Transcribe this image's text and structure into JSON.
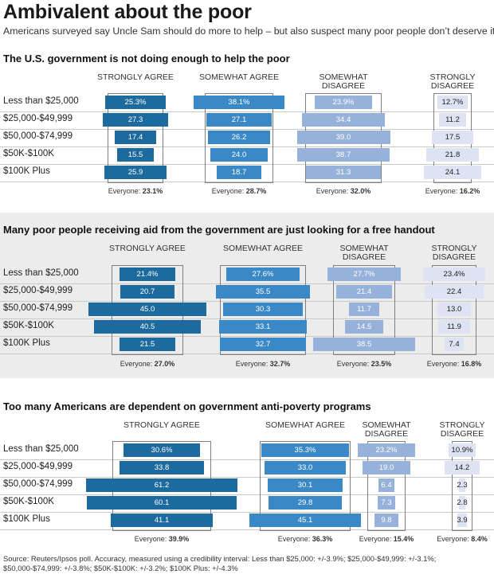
{
  "title": "Ambivalent about the poor",
  "subtitle": "Americans surveyed say Uncle Sam should do more to help – but also suspect many poor people don’t deserve it.",
  "source": "Source: Reuters/Ipsos poll. Accuracy, measured using a credibility interval: Less than $25,000: +/-3.9%; $25,000-$49,999: +/-3.1%; $50,000-$74,999: +/-3.8%; $50K-$100K: +/-3.2%; $100K Plus: +/-4.3%",
  "colors": {
    "strongly_agree": "#1d6a9f",
    "somewhat_agree": "#3b88c6",
    "somewhat_disagree": "#97b2da",
    "strongly_disagree": "#dde3f2",
    "panel_shade": "#ececec",
    "average_box": "#808080"
  },
  "chart_data": [
    {
      "type": "bar",
      "title": "The U.S. government is not doing enough to help the poor",
      "categories": [
        "Less than $25,000",
        "$25,000-$49,999",
        "$50,000-$74,999",
        "$50K-$100K",
        "$100K Plus"
      ],
      "category_labels": [
        "Less than $25,000",
        "$25,000-$49,999",
        "$50,000-$74,999",
        "$50K-$100K",
        "$100K Plus"
      ],
      "series": [
        {
          "name": "STRONGLY AGREE",
          "values": [
            25.3,
            27.3,
            17.4,
            15.5,
            25.9
          ],
          "labels": [
            "25.3%",
            "27.3",
            "17.4",
            "15.5",
            "25.9"
          ],
          "everyone": 23.1,
          "everyone_label": "Everyone:",
          "everyone_value": "23.1%"
        },
        {
          "name": "SOMEWHAT AGREE",
          "values": [
            38.1,
            27.1,
            26.2,
            24.0,
            18.7
          ],
          "labels": [
            "38.1%",
            "27.1",
            "26.2",
            "24.0",
            "18.7"
          ],
          "everyone": 28.7,
          "everyone_label": "Everyone:",
          "everyone_value": "28.7%"
        },
        {
          "name": "SOMEWHAT DISAGREE",
          "values": [
            23.9,
            34.4,
            39.0,
            38.7,
            31.3
          ],
          "labels": [
            "23.9%",
            "34.4",
            "39.0",
            "38.7",
            "31.3"
          ],
          "everyone": 32.0,
          "everyone_label": "Everyone:",
          "everyone_value": "32.0%"
        },
        {
          "name": "STRONGLY DISAGREE",
          "values": [
            12.7,
            11.2,
            17.5,
            21.8,
            24.1
          ],
          "labels": [
            "12.7%",
            "11.2",
            "17.5",
            "21.8",
            "24.1"
          ],
          "everyone": 16.2,
          "everyone_label": "Everyone:",
          "everyone_value": "16.2%"
        }
      ]
    },
    {
      "type": "bar",
      "title": "Many poor people receiving aid from the government are just looking for a free handout",
      "categories": [
        "Less than $25,000",
        "$25,000-$49,999",
        "$50,000-$74,999",
        "$50K-$100K",
        "$100K Plus"
      ],
      "category_labels": [
        "Less than $25,000",
        "$25,000-$49,999",
        "$50,000-$74,999",
        "$50K-$100K",
        "$100K Plus"
      ],
      "series": [
        {
          "name": "STRONGLY AGREE",
          "values": [
            21.4,
            20.7,
            45.0,
            40.5,
            21.5
          ],
          "labels": [
            "21.4%",
            "20.7",
            "45.0",
            "40.5",
            "21.5"
          ],
          "everyone": 27.0,
          "everyone_label": "Everyone:",
          "everyone_value": "27.0%"
        },
        {
          "name": "SOMEWHAT AGREE",
          "values": [
            27.6,
            35.5,
            30.3,
            33.1,
            32.7
          ],
          "labels": [
            "27.6%",
            "35.5",
            "30.3",
            "33.1",
            "32.7"
          ],
          "everyone": 32.7,
          "everyone_label": "Everyone:",
          "everyone_value": "32.7%"
        },
        {
          "name": "SOMEWHAT DISAGREE",
          "values": [
            27.7,
            21.4,
            11.7,
            14.5,
            38.5
          ],
          "labels": [
            "27.7%",
            "21.4",
            "11.7",
            "14.5",
            "38.5"
          ],
          "everyone": 23.5,
          "everyone_label": "Everyone:",
          "everyone_value": "23.5%"
        },
        {
          "name": "STRONGLY DISAGREE",
          "values": [
            23.4,
            22.4,
            13.0,
            11.9,
            7.4
          ],
          "labels": [
            "23.4%",
            "22.4",
            "13.0",
            "11.9",
            "7.4"
          ],
          "everyone": 16.8,
          "everyone_label": "Everyone:",
          "everyone_value": "16.8%"
        }
      ]
    },
    {
      "type": "bar",
      "title": "Too many Americans are dependent on government anti-poverty programs",
      "categories": [
        "Less than $25,000",
        "$25,000-$49,999",
        "$50,000-$74,999",
        "$50K-$100K",
        "$100K Plus"
      ],
      "category_labels": [
        "Less than $25,000",
        "$25,000-$49,999",
        "$50,000-$74,999",
        "$50K-$100K",
        "$100K Plus"
      ],
      "series": [
        {
          "name": "STRONGLY AGREE",
          "values": [
            30.6,
            33.8,
            61.2,
            60.1,
            41.1
          ],
          "labels": [
            "30.6%",
            "33.8",
            "61.2",
            "60.1",
            "41.1"
          ],
          "everyone": 39.9,
          "everyone_label": "Everyone:",
          "everyone_value": "39.9%"
        },
        {
          "name": "SOMEWHAT AGREE",
          "values": [
            35.3,
            33.0,
            30.1,
            29.8,
            45.1
          ],
          "labels": [
            "35.3%",
            "33.0",
            "30.1",
            "29.8",
            "45.1"
          ],
          "everyone": 36.3,
          "everyone_label": "Everyone:",
          "everyone_value": "36.3%"
        },
        {
          "name": "SOMEWHAT DISAGREE",
          "values": [
            23.2,
            19.0,
            6.4,
            7.3,
            9.8
          ],
          "labels": [
            "23.2%",
            "19.0",
            "6.4",
            "7.3",
            "9.8"
          ],
          "everyone": 15.4,
          "everyone_label": "Everyone:",
          "everyone_value": "15.4%"
        },
        {
          "name": "STRONGLY DISAGREE",
          "values": [
            10.9,
            14.2,
            2.3,
            2.8,
            3.9
          ],
          "labels": [
            "10.9%",
            "14.2",
            "2.3",
            "2.8",
            "3.9"
          ],
          "everyone": 8.4,
          "everyone_label": "Everyone:",
          "everyone_value": "8.4%"
        }
      ]
    }
  ]
}
